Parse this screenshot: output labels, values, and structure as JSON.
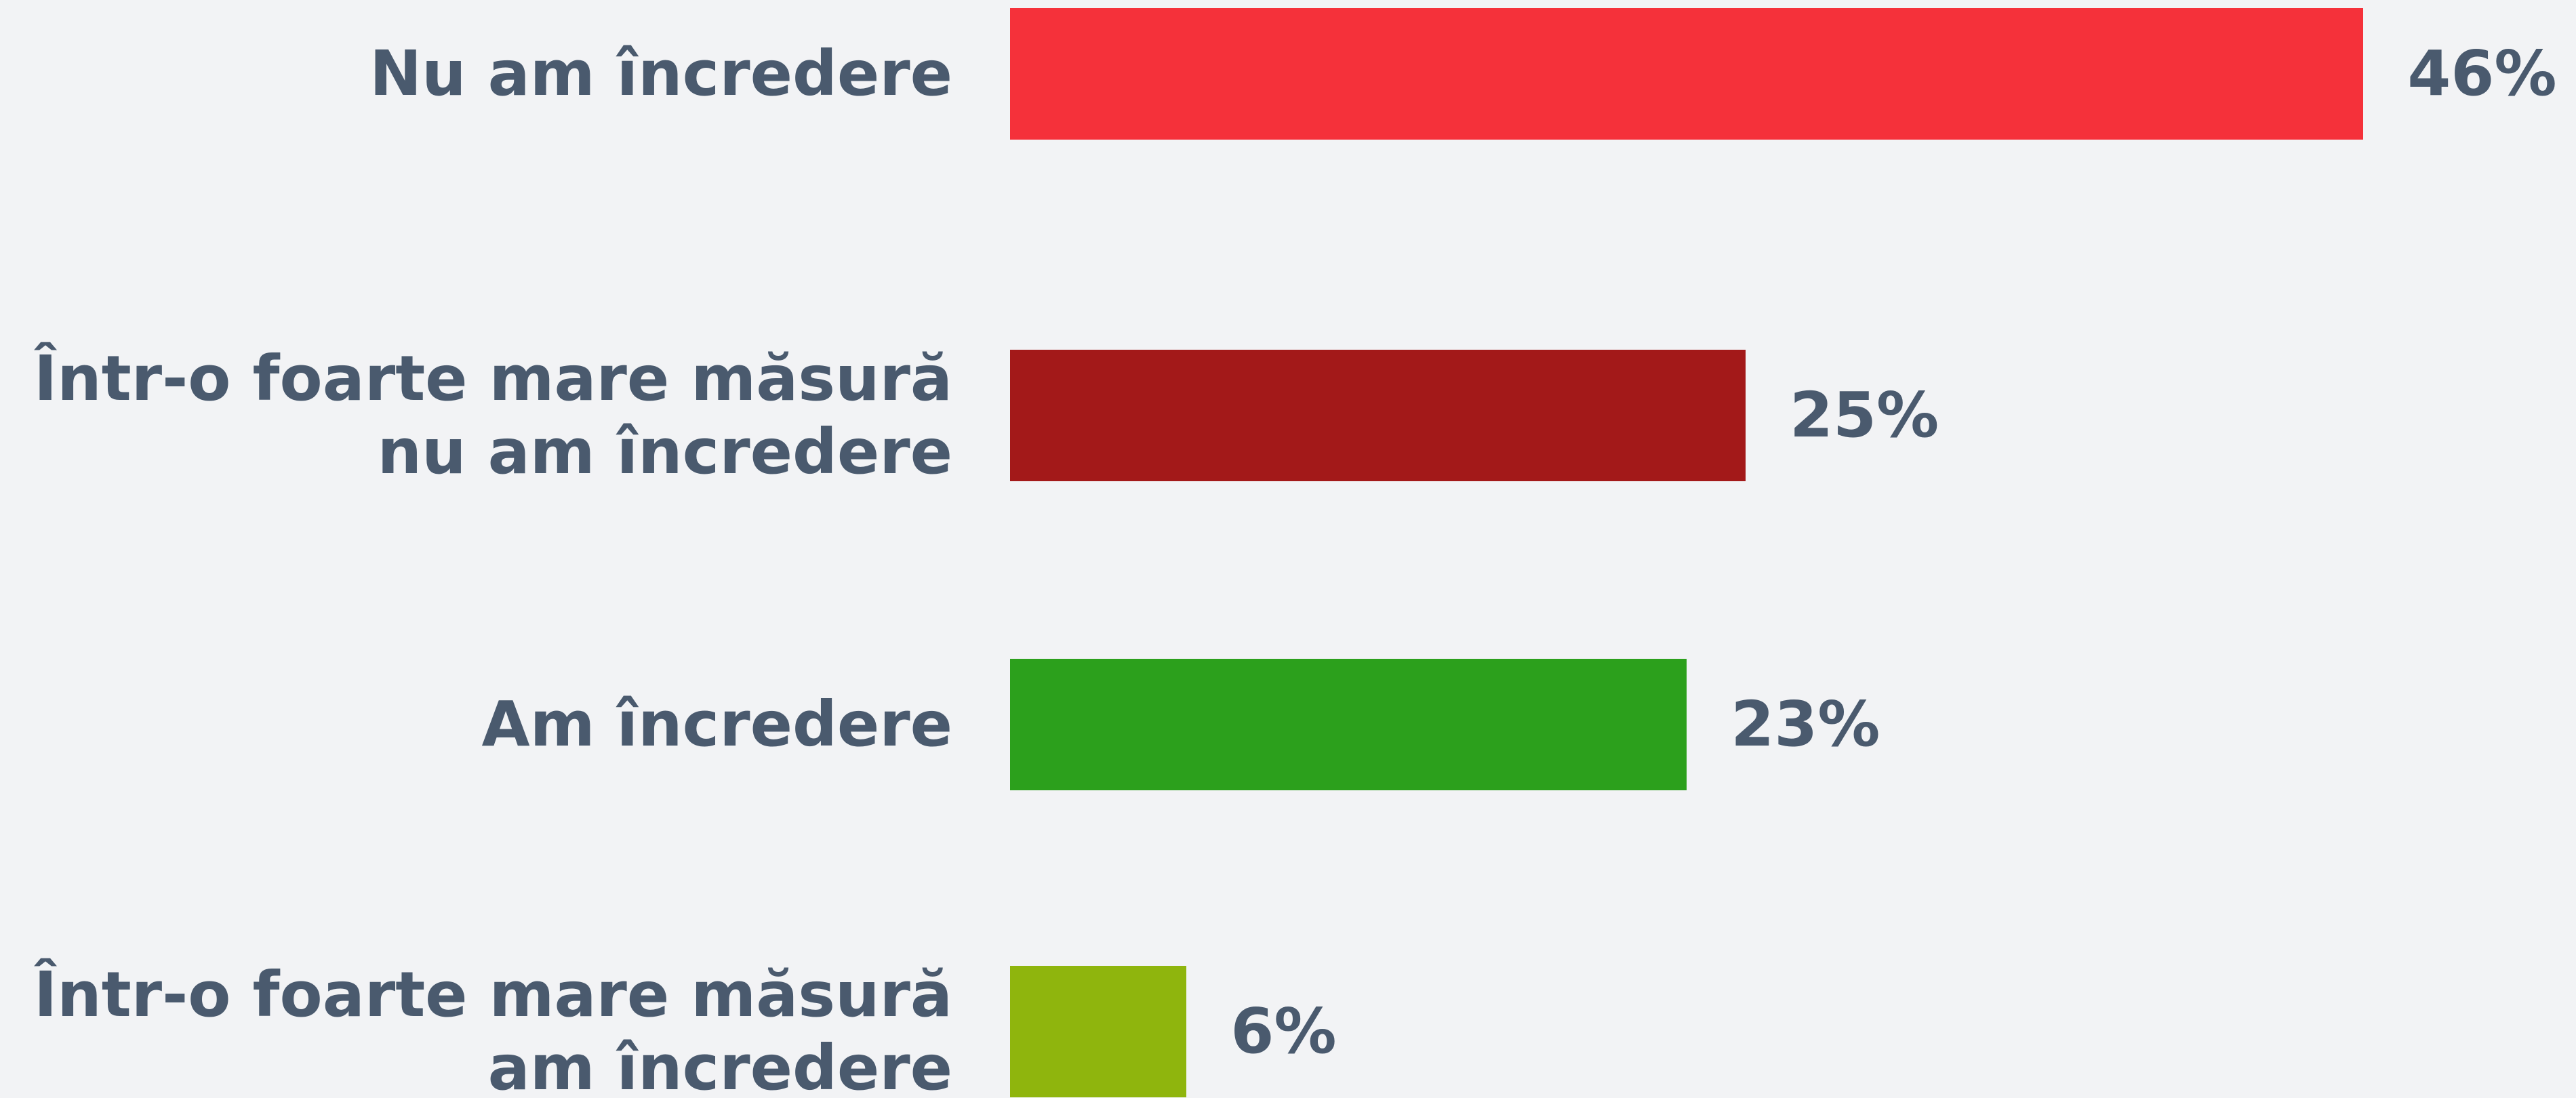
{
  "chart_data": {
    "type": "bar",
    "orientation": "horizontal",
    "categories": [
      "Nu am încredere",
      "Într-o foarte mare măsură nu am încredere",
      "Am încredere",
      "Într-o foarte mare măsură am încredere"
    ],
    "values": [
      46,
      25,
      23,
      6
    ],
    "value_labels": [
      "46%",
      "25%",
      "23%",
      "6%"
    ],
    "colors": [
      "#f5313a",
      "#a31919",
      "#2ca01c",
      "#8fb50d"
    ]
  }
}
